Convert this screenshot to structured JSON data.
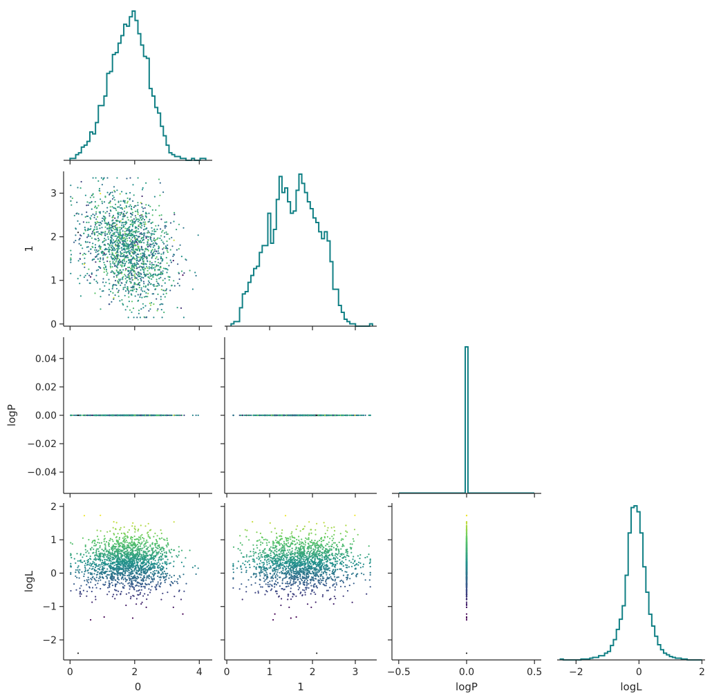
{
  "chart_data": {
    "type": "corner-plot",
    "variables": [
      "0",
      "1",
      "logP",
      "logL"
    ],
    "colors": {
      "histogram": "#0f7f84",
      "axes": "#262626",
      "colormap": [
        "#440154",
        "#3b528b",
        "#21918c",
        "#5ec962",
        "#fde725"
      ]
    },
    "grid": false,
    "axes": {
      "0": {
        "range": [
          -0.2,
          4.4
        ],
        "ticks": [
          0,
          2,
          4
        ],
        "tick_labels": [
          "0",
          "2",
          "4"
        ],
        "xlabel": "0"
      },
      "1": {
        "range": [
          -0.05,
          3.5
        ],
        "ticks": [
          0,
          1,
          2,
          3
        ],
        "tick_labels": [
          "0",
          "1",
          "2",
          "3"
        ],
        "ylabel": "1",
        "xlabel": "1"
      },
      "logP": {
        "range": [
          -0.055,
          0.055
        ],
        "ticks": [
          -0.04,
          -0.02,
          0.0,
          0.02,
          0.04
        ],
        "tick_labels": [
          "−0.04",
          "−0.02",
          "0.00",
          "0.02",
          "0.04"
        ],
        "ylabel": "logP",
        "x_range": [
          -0.55,
          0.55
        ],
        "x_ticks": [
          -0.5,
          0.0,
          0.5
        ],
        "x_tick_labels": [
          "−0.5",
          "0.0",
          "0.5"
        ],
        "xlabel": "logP"
      },
      "logL": {
        "range": [
          -2.6,
          2.1
        ],
        "ticks": [
          -2,
          -1,
          0,
          1,
          2
        ],
        "tick_labels": [
          "−2",
          "−1",
          "0",
          "1",
          "2"
        ],
        "ylabel": "logL",
        "x_range": [
          -2.6,
          2.1
        ],
        "x_ticks": [
          -2,
          0,
          2
        ],
        "x_tick_labels": [
          "−2",
          "0",
          "2"
        ],
        "xlabel": "logL"
      }
    },
    "histograms": {
      "0": {
        "bin_edges_range": [
          0,
          4.2
        ],
        "bins": 48,
        "counts": [
          1,
          1,
          3,
          4,
          7,
          8,
          10,
          15,
          14,
          20,
          29,
          29,
          34,
          46,
          47,
          56,
          57,
          62,
          66,
          72,
          71,
          76,
          79,
          74,
          67,
          61,
          55,
          54,
          38,
          34,
          28,
          25,
          18,
          13,
          8,
          4,
          3,
          2,
          2,
          1,
          1,
          0,
          0,
          1,
          0,
          0,
          1,
          1
        ]
      },
      "1": {
        "bin_edges_range": [
          0.1,
          3.4
        ],
        "bins": 50,
        "counts": [
          1,
          2,
          2,
          8,
          14,
          15,
          19,
          22,
          25,
          26,
          32,
          35,
          35,
          49,
          36,
          42,
          55,
          65,
          58,
          60,
          54,
          49,
          50,
          59,
          66,
          62,
          58,
          54,
          51,
          47,
          45,
          41,
          38,
          41,
          37,
          28,
          16,
          16,
          9,
          6,
          3,
          2,
          1,
          1,
          0,
          0,
          0,
          0,
          0,
          1
        ]
      },
      "logP": {
        "bin_edges_range": [
          -0.01,
          0.01
        ],
        "bins": 1,
        "counts": [
          3000
        ]
      },
      "logL": {
        "bin_edges_range": [
          -2.5,
          2.0
        ],
        "bins": 48,
        "counts": [
          1,
          0,
          0,
          0,
          0,
          0,
          0,
          1,
          1,
          1,
          2,
          3,
          3,
          5,
          5,
          8,
          10,
          17,
          24,
          36,
          48,
          64,
          100,
          150,
          180,
          182,
          175,
          150,
          110,
          80,
          54,
          40,
          28,
          18,
          12,
          8,
          6,
          4,
          3,
          2,
          2,
          1,
          1,
          0,
          0,
          0,
          0,
          0
        ]
      }
    },
    "scatter_pairs": [
      {
        "x": "0",
        "y": "1",
        "points": 1700,
        "note_shape": "cloud",
        "x_center": 1.8,
        "y_center": 1.7
      },
      {
        "x": "0",
        "y": "logP",
        "points": 900,
        "note_shape": "flat line at 0"
      },
      {
        "x": "1",
        "y": "logP",
        "points": 900,
        "note_shape": "flat line at 0"
      },
      {
        "x": "0",
        "y": "logL",
        "points": 1700
      },
      {
        "x": "1",
        "y": "logL",
        "points": 1700
      },
      {
        "x": "logP",
        "y": "logL",
        "points": 1700,
        "note_shape": "vertical line at 0"
      }
    ],
    "outlier_point": {
      "0": 0.25,
      "1": 2.1,
      "logP": 0.0,
      "logL": -2.4
    }
  }
}
